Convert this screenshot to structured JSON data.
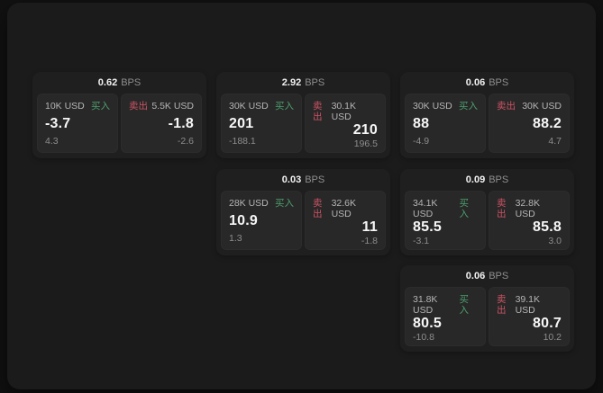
{
  "colors": {
    "buy_green": "#4d9e6d",
    "sell_red": "#cd5364",
    "page_background": "#111111",
    "window_background": "#1b1b1b",
    "card_background": "#1f1f1f",
    "panel_background": "#282828"
  },
  "labels": {
    "bps": "BPS",
    "buy": "买入",
    "sell": "卖出"
  },
  "cards": [
    {
      "bps_value": "0.62",
      "bps_label": "BPS",
      "buy": {
        "amount": "10K USD",
        "tag": "买入",
        "value": "-3.7",
        "delta": "4.3"
      },
      "sell": {
        "tag": "卖出",
        "amount": "5.5K USD",
        "value": "-1.8",
        "delta": "-2.6"
      }
    },
    {
      "bps_value": "2.92",
      "bps_label": "BPS",
      "buy": {
        "amount": "30K USD",
        "tag": "买入",
        "value": "201",
        "delta": "-188.1"
      },
      "sell": {
        "tag": "卖出",
        "amount": "30.1K USD",
        "value": "210",
        "delta": "196.5"
      }
    },
    {
      "bps_value": "0.06",
      "bps_label": "BPS",
      "buy": {
        "amount": "30K USD",
        "tag": "买入",
        "value": "88",
        "delta": "-4.9"
      },
      "sell": {
        "tag": "卖出",
        "amount": "30K USD",
        "value": "88.2",
        "delta": "4.7"
      }
    },
    {
      "bps_value": "0.03",
      "bps_label": "BPS",
      "buy": {
        "amount": "28K USD",
        "tag": "买入",
        "value": "10.9",
        "delta": "1.3"
      },
      "sell": {
        "tag": "卖出",
        "amount": "32.6K USD",
        "value": "11",
        "delta": "-1.8"
      }
    },
    {
      "bps_value": "0.09",
      "bps_label": "BPS",
      "buy": {
        "amount": "34.1K USD",
        "tag": "买入",
        "value": "85.5",
        "delta": "-3.1"
      },
      "sell": {
        "tag": "卖出",
        "amount": "32.8K USD",
        "value": "85.8",
        "delta": "3.0"
      }
    },
    {
      "bps_value": "0.06",
      "bps_label": "BPS",
      "buy": {
        "amount": "31.8K USD",
        "tag": "买入",
        "value": "80.5",
        "delta": "-10.8"
      },
      "sell": {
        "tag": "卖出",
        "amount": "39.1K USD",
        "value": "80.7",
        "delta": "10.2"
      }
    }
  ]
}
